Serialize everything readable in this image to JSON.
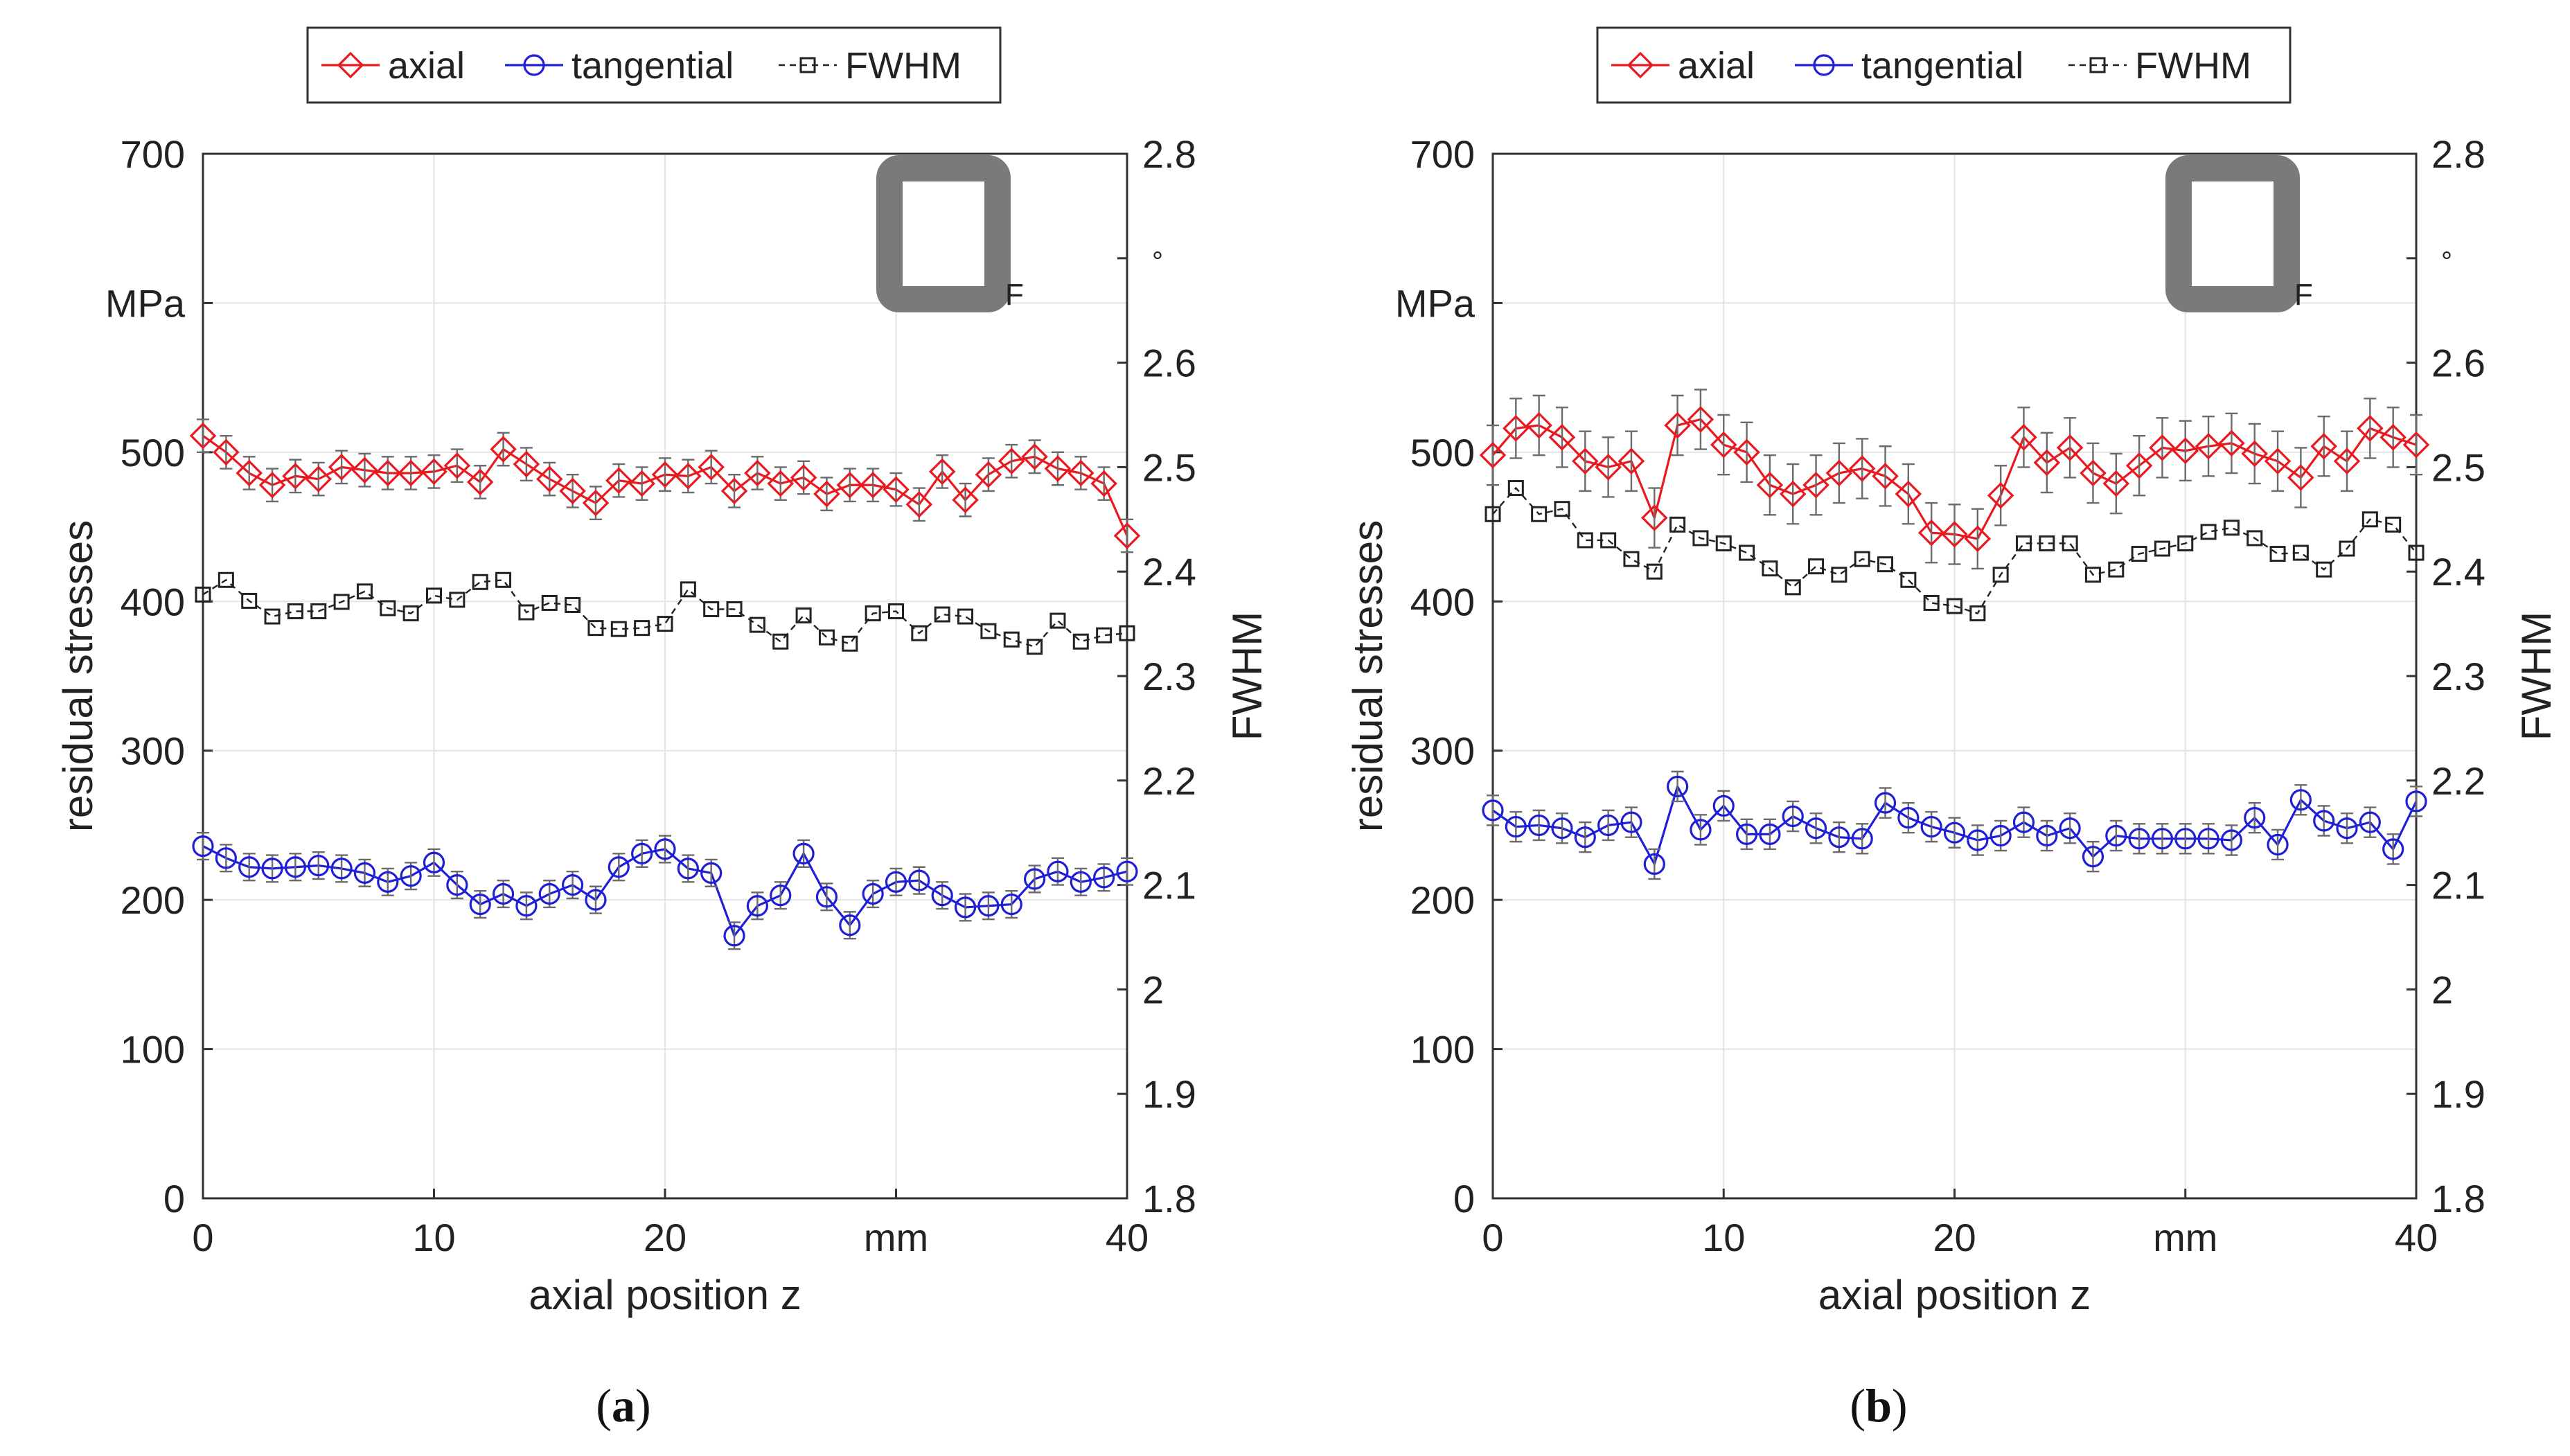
{
  "chart_data": [
    {
      "type": "line",
      "caption": "(a)",
      "panel_label": "a",
      "xlabel": "axial position z",
      "x_unit_label": "mm",
      "ylabel_left": "residual stresses",
      "y_unit_label": "MPa",
      "ylabel_right": "FWHM",
      "y2_unit_label": "°",
      "marker_label": "F",
      "xlim": [
        0,
        40
      ],
      "ylim_left": [
        0,
        700
      ],
      "ylim_right": [
        1.8,
        2.8
      ],
      "xticks": [
        "0",
        "10",
        "20",
        "mm",
        "40"
      ],
      "yticks_left": [
        "0",
        "100",
        "200",
        "300",
        "400",
        "500",
        "600",
        "700"
      ],
      "yticks_right": [
        "1.8",
        "1.9",
        "2",
        "2.1",
        "2.2",
        "2.3",
        "2.4",
        "2.5",
        "2.6",
        "2.7",
        "2.8"
      ],
      "grid": true,
      "legend_position": "top-center",
      "x": [
        0,
        1,
        2,
        3,
        4,
        5,
        6,
        7,
        8,
        9,
        10,
        11,
        12,
        13,
        14,
        15,
        16,
        17,
        18,
        19,
        20,
        21,
        22,
        23,
        24,
        25,
        26,
        27,
        28,
        29,
        30,
        31,
        32,
        33,
        34,
        35,
        36,
        37,
        38,
        39,
        40
      ],
      "series": [
        {
          "name": "axial",
          "axis": "left",
          "color": "#e8191f",
          "marker": "diamond",
          "linestyle": "solid",
          "values": [
            511,
            500,
            486,
            478,
            484,
            482,
            490,
            488,
            486,
            486,
            487,
            491,
            480,
            502,
            492,
            482,
            474,
            466,
            481,
            479,
            485,
            484,
            490,
            474,
            486,
            479,
            483,
            472,
            478,
            478,
            475,
            465,
            487,
            468,
            485,
            494,
            497,
            489,
            486,
            479,
            444
          ],
          "error": 11
        },
        {
          "name": "tangential",
          "axis": "left",
          "color": "#1f1fd8",
          "marker": "circle",
          "linestyle": "solid",
          "values": [
            236,
            228,
            222,
            221,
            222,
            223,
            221,
            218,
            212,
            216,
            225,
            210,
            197,
            204,
            196,
            204,
            210,
            200,
            222,
            231,
            234,
            221,
            218,
            176,
            196,
            203,
            231,
            202,
            183,
            204,
            212,
            213,
            203,
            195,
            196,
            197,
            214,
            219,
            212,
            215,
            219
          ],
          "error": 9
        },
        {
          "name": "FWHM",
          "axis": "right",
          "color": "#222222",
          "marker": "square",
          "linestyle": "dashed",
          "values": [
            2.378,
            2.392,
            2.372,
            2.357,
            2.362,
            2.362,
            2.371,
            2.381,
            2.365,
            2.36,
            2.377,
            2.373,
            2.39,
            2.392,
            2.361,
            2.37,
            2.368,
            2.346,
            2.345,
            2.346,
            2.35,
            2.383,
            2.364,
            2.364,
            2.349,
            2.333,
            2.358,
            2.337,
            2.331,
            2.36,
            2.362,
            2.341,
            2.359,
            2.357,
            2.343,
            2.335,
            2.328,
            2.353,
            2.333,
            2.339,
            2.341
          ]
        }
      ]
    },
    {
      "type": "line",
      "caption": "(b)",
      "panel_label": "b",
      "xlabel": "axial position z",
      "x_unit_label": "mm",
      "ylabel_left": "residual stresses",
      "y_unit_label": "MPa",
      "ylabel_right": "FWHM",
      "y2_unit_label": "°",
      "marker_label": "F",
      "xlim": [
        0,
        40
      ],
      "ylim_left": [
        0,
        700
      ],
      "ylim_right": [
        1.8,
        2.8
      ],
      "xticks": [
        "0",
        "10",
        "20",
        "mm",
        "40"
      ],
      "yticks_left": [
        "0",
        "100",
        "200",
        "300",
        "400",
        "500",
        "600",
        "700"
      ],
      "yticks_right": [
        "1.8",
        "1.9",
        "2",
        "2.1",
        "2.2",
        "2.3",
        "2.4",
        "2.5",
        "2.6",
        "2.7",
        "2.8"
      ],
      "grid": true,
      "legend_position": "top-center",
      "x": [
        0,
        1,
        2,
        3,
        4,
        5,
        6,
        7,
        8,
        9,
        10,
        11,
        12,
        13,
        14,
        15,
        16,
        17,
        18,
        19,
        20,
        21,
        22,
        23,
        24,
        25,
        26,
        27,
        28,
        29,
        30,
        31,
        32,
        33,
        34,
        35,
        36,
        37,
        38,
        39,
        40
      ],
      "series": [
        {
          "name": "axial",
          "axis": "left",
          "color": "#e8191f",
          "marker": "diamond",
          "linestyle": "solid",
          "values": [
            498,
            516,
            518,
            510,
            494,
            490,
            494,
            456,
            518,
            522,
            505,
            500,
            478,
            472,
            478,
            486,
            489,
            484,
            472,
            446,
            445,
            442,
            471,
            510,
            493,
            503,
            486,
            479,
            491,
            503,
            501,
            504,
            506,
            499,
            494,
            483,
            504,
            494,
            516,
            510,
            505
          ],
          "error": 20
        },
        {
          "name": "tangential",
          "axis": "left",
          "color": "#1f1fd8",
          "marker": "circle",
          "linestyle": "solid",
          "values": [
            260,
            249,
            250,
            248,
            242,
            250,
            252,
            224,
            276,
            247,
            263,
            244,
            244,
            256,
            248,
            242,
            241,
            265,
            255,
            249,
            245,
            240,
            243,
            252,
            243,
            248,
            229,
            243,
            241,
            241,
            241,
            241,
            240,
            255,
            237,
            267,
            253,
            248,
            252,
            234,
            266
          ],
          "error": 10
        },
        {
          "name": "FWHM",
          "axis": "right",
          "color": "#222222",
          "marker": "square",
          "linestyle": "dashed",
          "values": [
            2.455,
            2.48,
            2.455,
            2.46,
            2.43,
            2.43,
            2.412,
            2.4,
            2.445,
            2.432,
            2.427,
            2.418,
            2.403,
            2.385,
            2.405,
            2.397,
            2.412,
            2.407,
            2.392,
            2.37,
            2.367,
            2.36,
            2.397,
            2.427,
            2.427,
            2.427,
            2.397,
            2.402,
            2.417,
            2.422,
            2.427,
            2.438,
            2.442,
            2.432,
            2.417,
            2.418,
            2.402,
            2.422,
            2.45,
            2.445,
            2.418
          ]
        }
      ]
    }
  ]
}
